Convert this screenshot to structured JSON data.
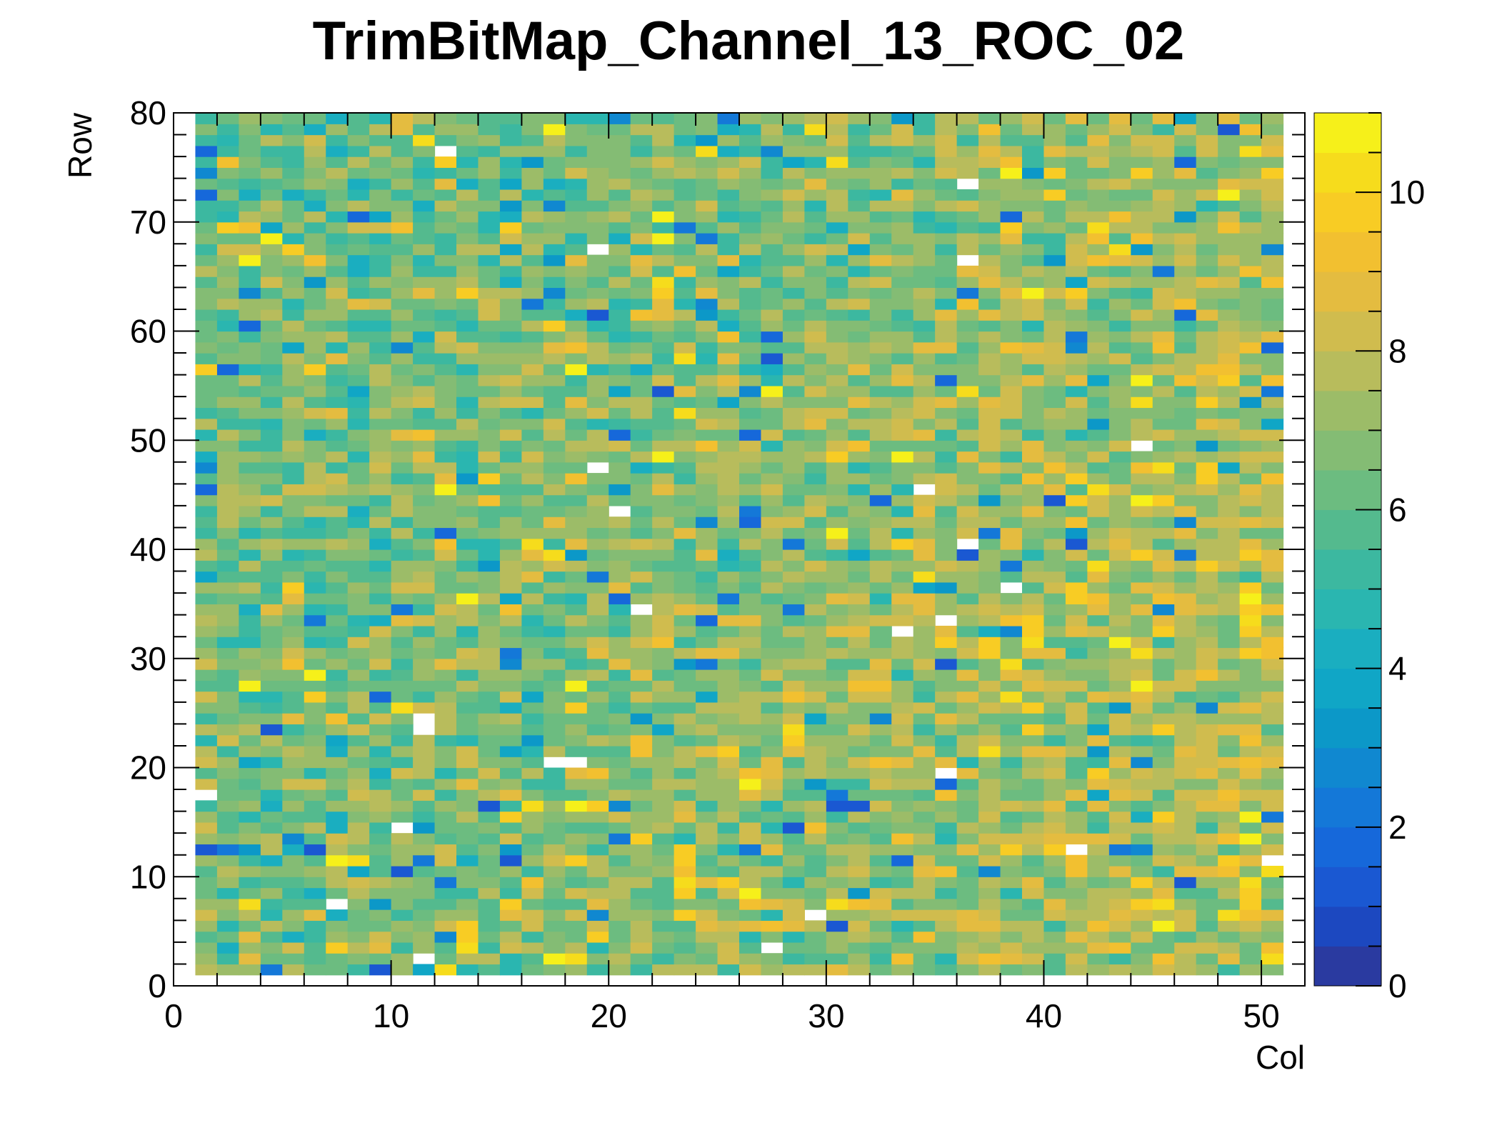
{
  "chart_data": {
    "type": "heatmap",
    "title": "TrimBitMap_Channel_13_ROC_02",
    "xlabel": "Col",
    "ylabel": "Row",
    "xlim": [
      0,
      52
    ],
    "ylim": [
      0,
      80
    ],
    "zlim": [
      0,
      11
    ],
    "x_ticks": [
      0,
      10,
      20,
      30,
      40,
      50
    ],
    "y_ticks": [
      0,
      10,
      20,
      30,
      40,
      50,
      60,
      70,
      80
    ],
    "z_ticks": [
      0,
      2,
      4,
      6,
      8,
      10
    ],
    "cols": 50,
    "rows": 79,
    "first_col": 1,
    "first_row": 1,
    "typical_value": 7,
    "value_range_observed": [
      0,
      11
    ],
    "empty_cells": [
      [
        1,
        17
      ],
      [
        7,
        7
      ],
      [
        10,
        14
      ],
      [
        11,
        2
      ],
      [
        11,
        23
      ],
      [
        11,
        24
      ],
      [
        12,
        76
      ],
      [
        17,
        20
      ],
      [
        18,
        20
      ],
      [
        19,
        67
      ],
      [
        19,
        47
      ],
      [
        20,
        43
      ],
      [
        21,
        34
      ],
      [
        27,
        3
      ],
      [
        29,
        6
      ],
      [
        33,
        32
      ],
      [
        34,
        45
      ],
      [
        35,
        19
      ],
      [
        35,
        33
      ],
      [
        36,
        66
      ],
      [
        36,
        73
      ],
      [
        36,
        40
      ],
      [
        38,
        36
      ],
      [
        41,
        12
      ],
      [
        44,
        49
      ],
      [
        50,
        11
      ]
    ],
    "colorscale": [
      "#2a3aa0",
      "#1c48c0",
      "#1a58d2",
      "#1668da",
      "#1478d8",
      "#1088d0",
      "#0c98c8",
      "#10a6c6",
      "#1aaec0",
      "#2ab6b0",
      "#3cb8a0",
      "#54ba8e",
      "#6cbc80",
      "#84bc74",
      "#9cbc68",
      "#b8bc5c",
      "#d0bc4e",
      "#e4bc40",
      "#f2c030",
      "#f8cc24",
      "#f6dc1c",
      "#f6f01a"
    ]
  }
}
